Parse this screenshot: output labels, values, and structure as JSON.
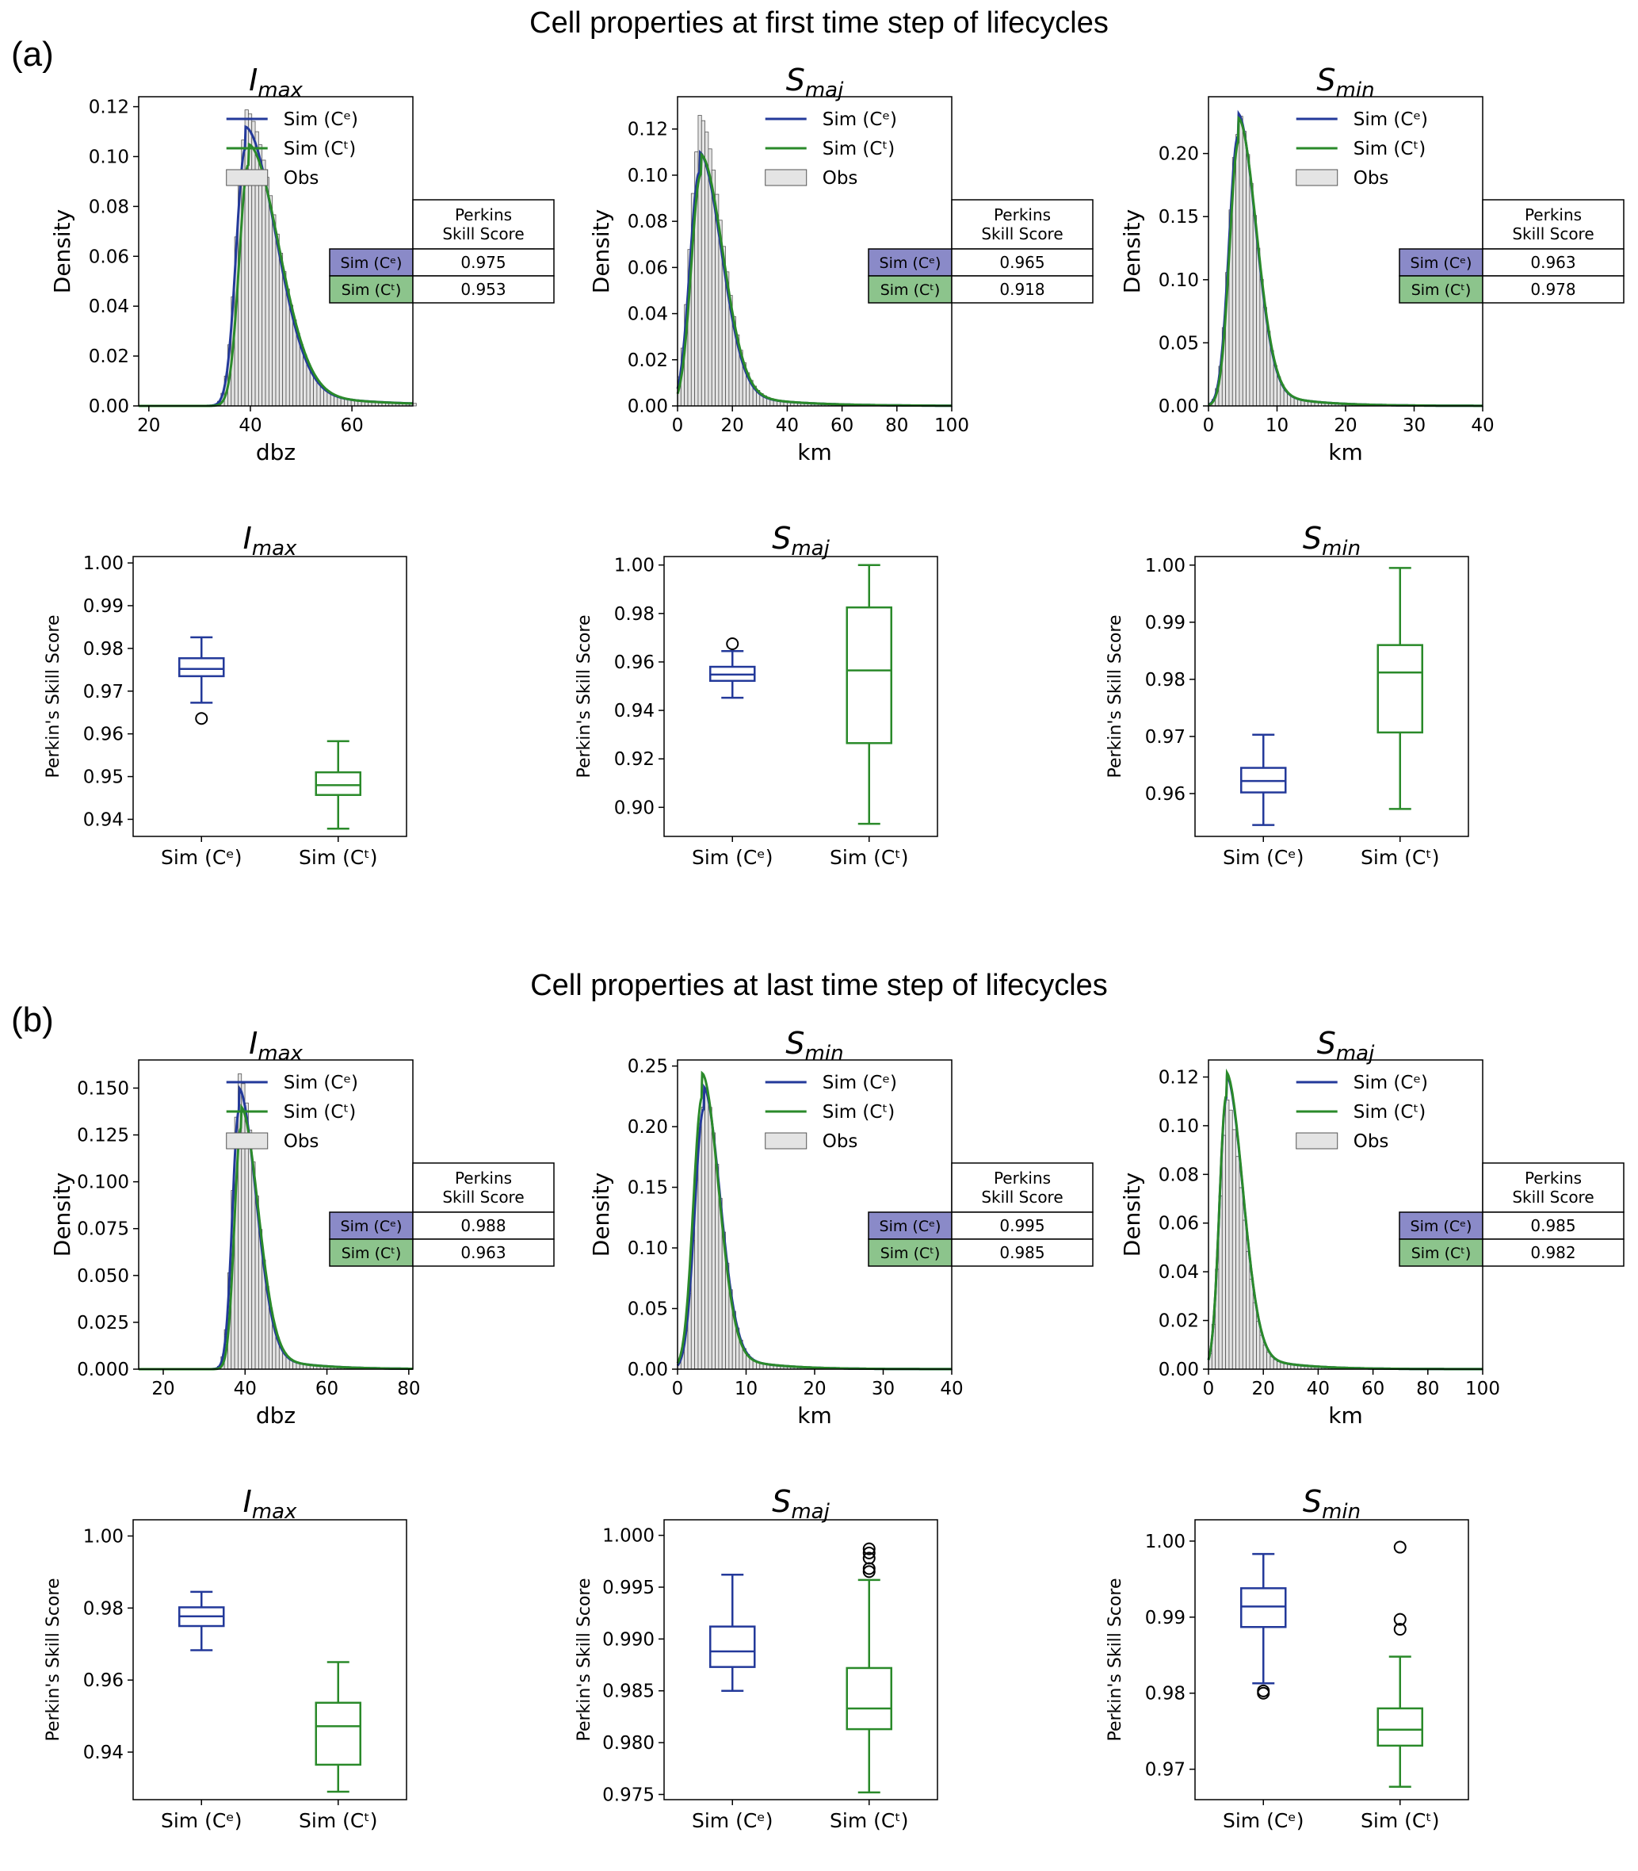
{
  "sections": [
    {
      "letter": "(a)",
      "title": "Cell properties at first time step of lifecycles"
    },
    {
      "letter": "(b)",
      "title": "Cell properties at last time step of lifecycles"
    }
  ],
  "legend": {
    "sim_ce": "Sim (Cᵉ)",
    "sim_ct": "Sim (Cᵗ)",
    "obs": "Obs"
  },
  "skill_table_header": [
    "Perkins",
    "Skill Score"
  ],
  "colors": {
    "ce": "#23399a",
    "ct": "#2a8a2a",
    "obs_fill": "#e4e4e4",
    "obs_edge": "#555555",
    "ce_cell": "#8a8ac8",
    "ct_cell": "#8cc48c"
  },
  "chart_data": [
    {
      "type": "area",
      "panel": "a",
      "title": "I",
      "title_sub": "max",
      "xlabel": "dbz",
      "ylabel": "Density",
      "xlim": [
        18,
        72
      ],
      "ylim": [
        0,
        0.124
      ],
      "xticks": [
        20,
        40,
        60
      ],
      "yticks": [
        0,
        0.02,
        0.04,
        0.06,
        0.08,
        0.1,
        0.12
      ],
      "ytick_labels": [
        "0.00",
        "0.02",
        "0.04",
        "0.06",
        "0.08",
        "0.10",
        "0.12"
      ],
      "dist": {
        "peak": 39,
        "left": 1.8,
        "right": 6,
        "amp_ce": 0.112,
        "amp_ct": 0.105,
        "amp_obs": 0.119,
        "shift_ct": 0.6
      },
      "skill": {
        "ce": "0.975",
        "ct": "0.953"
      }
    },
    {
      "type": "area",
      "panel": "a",
      "title": "S",
      "title_sub": "maj",
      "xlabel": "km",
      "ylabel": "Density",
      "xlim": [
        0,
        100
      ],
      "ylim": [
        0,
        0.134
      ],
      "xticks": [
        0,
        20,
        40,
        60,
        80,
        100
      ],
      "yticks": [
        0,
        0.02,
        0.04,
        0.06,
        0.08,
        0.1,
        0.12
      ],
      "ytick_labels": [
        "0.00",
        "0.02",
        "0.04",
        "0.06",
        "0.08",
        "0.10",
        "0.12"
      ],
      "dist": {
        "peak": 8,
        "left": 3.5,
        "right": 8,
        "amp_ce": 0.11,
        "amp_ct": 0.109,
        "amp_obs": 0.126,
        "shift_ct": 0.5
      },
      "skill": {
        "ce": "0.965",
        "ct": "0.918"
      }
    },
    {
      "type": "area",
      "panel": "a",
      "title": "S",
      "title_sub": "min",
      "xlabel": "km",
      "ylabel": "Density",
      "xlim": [
        0,
        40
      ],
      "ylim": [
        0,
        0.245
      ],
      "xticks": [
        0,
        10,
        20,
        30,
        40
      ],
      "yticks": [
        0,
        0.05,
        0.1,
        0.15,
        0.2
      ],
      "ytick_labels": [
        "0.00",
        "0.05",
        "0.10",
        "0.15",
        "0.20"
      ],
      "dist": {
        "peak": 4.3,
        "left": 1.3,
        "right": 2.6,
        "amp_ce": 0.232,
        "amp_ct": 0.228,
        "amp_obs": 0.234,
        "shift_ct": 0.1
      },
      "skill": {
        "ce": "0.963",
        "ct": "0.978"
      }
    },
    {
      "type": "area",
      "panel": "b",
      "title": "I",
      "title_sub": "max",
      "xlabel": "dbz",
      "ylabel": "Density",
      "xlim": [
        14,
        81
      ],
      "ylim": [
        0,
        0.165
      ],
      "xticks": [
        20,
        40,
        60,
        80
      ],
      "yticks": [
        0,
        0.025,
        0.05,
        0.075,
        0.1,
        0.125,
        0.15
      ],
      "ytick_labels": [
        "0.000",
        "0.025",
        "0.050",
        "0.075",
        "0.100",
        "0.125",
        "0.150"
      ],
      "dist": {
        "peak": 38.5,
        "left": 1.6,
        "right": 4.2,
        "amp_ce": 0.15,
        "amp_ct": 0.14,
        "amp_obs": 0.158,
        "shift_ct": 0.5
      },
      "skill": {
        "ce": "0.988",
        "ct": "0.963"
      }
    },
    {
      "type": "area",
      "panel": "b",
      "title": "S",
      "title_sub": "min",
      "xlabel": "km",
      "ylabel": "Density",
      "xlim": [
        0,
        40
      ],
      "ylim": [
        0,
        0.255
      ],
      "xticks": [
        0,
        10,
        20,
        30,
        40
      ],
      "yticks": [
        0,
        0.05,
        0.1,
        0.15,
        0.2,
        0.25
      ],
      "ytick_labels": [
        "0.00",
        "0.05",
        "0.10",
        "0.15",
        "0.20",
        "0.25"
      ],
      "dist": {
        "peak": 3.8,
        "left": 1.3,
        "right": 2.4,
        "amp_ce": 0.233,
        "amp_ct": 0.244,
        "amp_obs": 0.235,
        "shift_ct": -0.2
      },
      "skill": {
        "ce": "0.995",
        "ct": "0.985"
      }
    },
    {
      "type": "area",
      "panel": "b",
      "title": "S",
      "title_sub": "maj",
      "xlabel": "km",
      "ylabel": "Density",
      "xlim": [
        0,
        100
      ],
      "ylim": [
        0,
        0.127
      ],
      "xticks": [
        0,
        20,
        40,
        60,
        80,
        100
      ],
      "yticks": [
        0,
        0.02,
        0.04,
        0.06,
        0.08,
        0.1,
        0.12
      ],
      "ytick_labels": [
        "0.00",
        "0.02",
        "0.04",
        "0.06",
        "0.08",
        "0.10",
        "0.12"
      ],
      "dist": {
        "peak": 6.5,
        "left": 2.5,
        "right": 6,
        "amp_ce": 0.121,
        "amp_ct": 0.122,
        "amp_obs": 0.111,
        "shift_ct": 0
      },
      "skill": {
        "ce": "0.985",
        "ct": "0.982"
      }
    },
    {
      "type": "box",
      "panel": "a",
      "title": "I",
      "title_sub": "max",
      "ylabel": "Perkin's Skill Score",
      "categories": [
        "Sim (Cᵉ)",
        "Sim (Cᵗ)"
      ],
      "ylim": [
        0.936,
        1.0015
      ],
      "yticks": [
        0.94,
        0.95,
        0.96,
        0.97,
        0.98,
        0.99,
        1.0
      ],
      "ytick_labels": [
        "0.94",
        "0.95",
        "0.96",
        "0.97",
        "0.98",
        "0.99",
        "1.00"
      ],
      "boxes": [
        {
          "whislo": 0.9673,
          "q1": 0.9735,
          "med": 0.9752,
          "q3": 0.9777,
          "whishi": 0.9826,
          "fliers": [
            0.9636
          ]
        },
        {
          "whislo": 0.9378,
          "q1": 0.9457,
          "med": 0.948,
          "q3": 0.951,
          "whishi": 0.9583,
          "fliers": []
        }
      ]
    },
    {
      "type": "box",
      "panel": "a",
      "title": "S",
      "title_sub": "maj",
      "ylabel": "Perkin's Skill Score",
      "categories": [
        "Sim (Cᵉ)",
        "Sim (Cᵗ)"
      ],
      "ylim": [
        0.888,
        1.0035
      ],
      "yticks": [
        0.9,
        0.92,
        0.94,
        0.96,
        0.98,
        1.0
      ],
      "ytick_labels": [
        "0.90",
        "0.92",
        "0.94",
        "0.96",
        "0.98",
        "1.00"
      ],
      "boxes": [
        {
          "whislo": 0.9452,
          "q1": 0.9522,
          "med": 0.9548,
          "q3": 0.958,
          "whishi": 0.9645,
          "fliers": [
            0.9675
          ]
        },
        {
          "whislo": 0.8932,
          "q1": 0.9265,
          "med": 0.9565,
          "q3": 0.9825,
          "whishi": 1.0,
          "fliers": []
        }
      ]
    },
    {
      "type": "box",
      "panel": "a",
      "title": "S",
      "title_sub": "min",
      "ylabel": "Perkin's Skill Score",
      "categories": [
        "Sim (Cᵉ)",
        "Sim (Cᵗ)"
      ],
      "ylim": [
        0.9525,
        1.0015
      ],
      "yticks": [
        0.96,
        0.97,
        0.98,
        0.99,
        1.0
      ],
      "ytick_labels": [
        "0.96",
        "0.97",
        "0.98",
        "0.99",
        "1.00"
      ],
      "boxes": [
        {
          "whislo": 0.9545,
          "q1": 0.9602,
          "med": 0.9622,
          "q3": 0.9645,
          "whishi": 0.9703,
          "fliers": []
        },
        {
          "whislo": 0.9573,
          "q1": 0.9707,
          "med": 0.9812,
          "q3": 0.986,
          "whishi": 0.9995,
          "fliers": []
        }
      ]
    },
    {
      "type": "box",
      "panel": "b",
      "title": "I",
      "title_sub": "max",
      "ylabel": "Perkin's Skill Score",
      "categories": [
        "Sim (Cᵉ)",
        "Sim (Cᵗ)"
      ],
      "ylim": [
        0.9268,
        1.0045
      ],
      "yticks": [
        0.94,
        0.96,
        0.98,
        1.0
      ],
      "ytick_labels": [
        "0.94",
        "0.96",
        "0.98",
        "1.00"
      ],
      "boxes": [
        {
          "whislo": 0.9683,
          "q1": 0.975,
          "med": 0.9777,
          "q3": 0.9802,
          "whishi": 0.9845,
          "fliers": []
        },
        {
          "whislo": 0.929,
          "q1": 0.9365,
          "med": 0.9472,
          "q3": 0.9537,
          "whishi": 0.965,
          "fliers": []
        }
      ]
    },
    {
      "type": "box",
      "panel": "b",
      "title": "S",
      "title_sub": "maj",
      "ylabel": "Perkin's Skill Score",
      "categories": [
        "Sim (Cᵉ)",
        "Sim (Cᵗ)"
      ],
      "ylim": [
        0.9745,
        1.0015
      ],
      "yticks": [
        0.975,
        0.98,
        0.985,
        0.99,
        0.995,
        1.0
      ],
      "ytick_labels": [
        "0.975",
        "0.980",
        "0.985",
        "0.990",
        "0.995",
        "1.000"
      ],
      "boxes": [
        {
          "whislo": 0.985,
          "q1": 0.9873,
          "med": 0.9888,
          "q3": 0.9912,
          "whishi": 0.9962,
          "fliers": []
        },
        {
          "whislo": 0.9752,
          "q1": 0.9813,
          "med": 0.9833,
          "q3": 0.9872,
          "whishi": 0.9957,
          "fliers": [
            0.9965,
            0.9968,
            0.9978,
            0.9983,
            0.9987
          ]
        }
      ]
    },
    {
      "type": "box",
      "panel": "b",
      "title": "S",
      "title_sub": "min",
      "ylabel": "Perkin's Skill Score",
      "categories": [
        "Sim (Cᵉ)",
        "Sim (Cᵗ)"
      ],
      "ylim": [
        0.966,
        1.0028
      ],
      "yticks": [
        0.97,
        0.98,
        0.99,
        1.0
      ],
      "ytick_labels": [
        "0.97",
        "0.98",
        "0.99",
        "1.00"
      ],
      "boxes": [
        {
          "whislo": 0.9813,
          "q1": 0.9887,
          "med": 0.9914,
          "q3": 0.9938,
          "whishi": 0.9983,
          "fliers": [
            0.98,
            0.9803
          ]
        },
        {
          "whislo": 0.9677,
          "q1": 0.9731,
          "med": 0.9752,
          "q3": 0.978,
          "whishi": 0.9848,
          "fliers": [
            0.9884,
            0.9897,
            0.9992
          ]
        }
      ]
    }
  ]
}
